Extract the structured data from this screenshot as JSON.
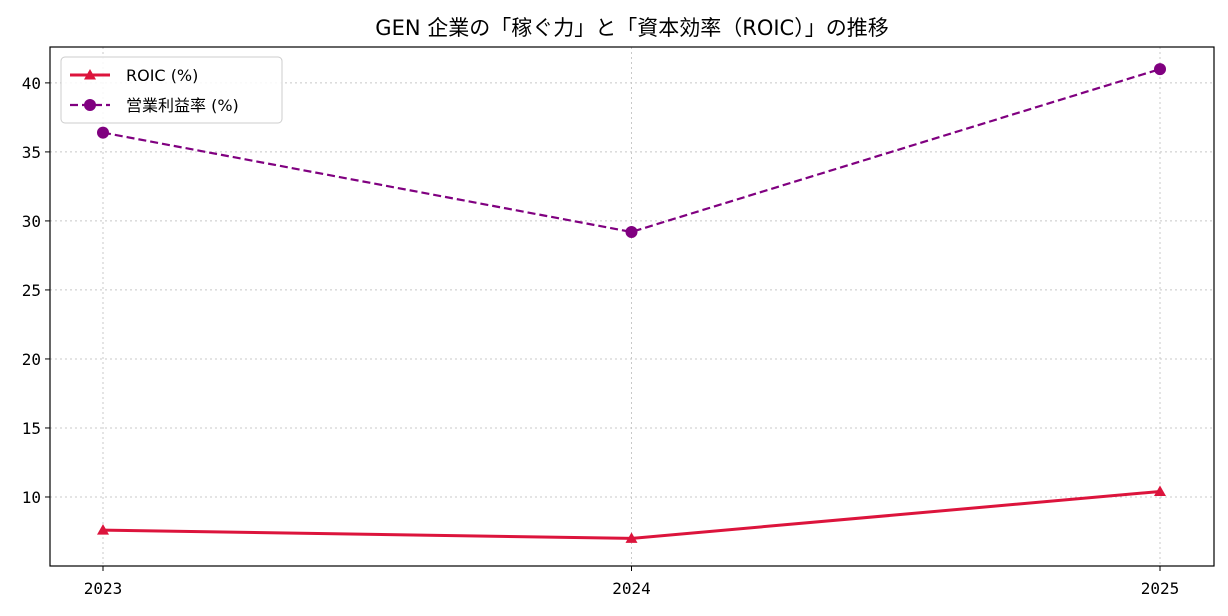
{
  "chart_data": {
    "type": "line",
    "title": "GEN 企業の「稼ぐ力」と「資本効率（ROIC）」の推移",
    "xlabel": "",
    "ylabel": "",
    "x": [
      "2023",
      "2024",
      "2025"
    ],
    "ylim": [
      5.0,
      42.6
    ],
    "yticks": [
      10,
      15,
      20,
      25,
      30,
      35,
      40
    ],
    "grid": true,
    "legend_position": "top-left",
    "series": [
      {
        "name": "ROIC (%)",
        "values": [
          7.6,
          7.0,
          10.4
        ],
        "color": "#dc143c",
        "marker": "triangle",
        "line_style": "solid"
      },
      {
        "name": "営業利益率 (%)",
        "values": [
          36.4,
          29.2,
          41.0
        ],
        "color": "#800080",
        "marker": "circle",
        "line_style": "dashed"
      }
    ]
  }
}
